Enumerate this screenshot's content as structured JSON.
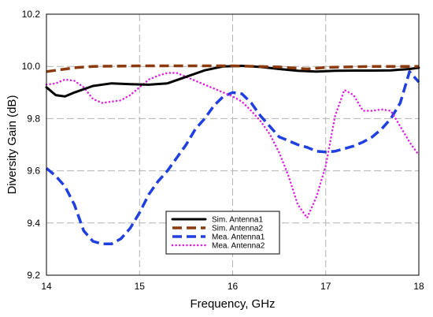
{
  "chart_data": {
    "type": "line",
    "xlabel": "Frequency, GHz",
    "ylabel": "Diversity Gain (dB)",
    "xlim": [
      14,
      18
    ],
    "ylim": [
      9.2,
      10.2
    ],
    "xticks": [
      "14",
      "15",
      "16",
      "17",
      "18"
    ],
    "yticks": [
      "9.2",
      "9.4",
      "9.6",
      "9.8",
      "10.0",
      "10.2"
    ],
    "grid": true,
    "legend_position": "bottom-center",
    "series": [
      {
        "name": "Sim. Antenna1",
        "color": "#000000",
        "style": "solid",
        "x": [
          14.0,
          14.1,
          14.2,
          14.3,
          14.5,
          14.7,
          14.9,
          15.1,
          15.3,
          15.5,
          15.7,
          15.9,
          16.1,
          16.3,
          16.5,
          16.7,
          16.9,
          17.1,
          17.3,
          17.5,
          17.7,
          17.9,
          18.0
        ],
        "y": [
          9.92,
          9.89,
          9.885,
          9.9,
          9.925,
          9.935,
          9.932,
          9.93,
          9.935,
          9.96,
          9.985,
          10.0,
          10.002,
          9.998,
          9.99,
          9.983,
          9.98,
          9.983,
          9.984,
          9.984,
          9.985,
          9.99,
          9.995
        ]
      },
      {
        "name": "Sim. Antenna2",
        "color": "#8B3A0E",
        "style": "dash",
        "x": [
          14.0,
          14.1,
          14.3,
          14.5,
          15.0,
          15.5,
          16.0,
          16.5,
          16.8,
          17.0,
          17.5,
          18.0
        ],
        "y": [
          9.98,
          9.985,
          9.995,
          10.0,
          10.002,
          10.002,
          10.002,
          9.998,
          9.99,
          9.996,
          10.0,
          10.0
        ]
      },
      {
        "name": "Mea. Antenna1",
        "color": "#1F3FE0",
        "style": "dash",
        "x": [
          14.0,
          14.1,
          14.2,
          14.3,
          14.4,
          14.5,
          14.6,
          14.7,
          14.8,
          14.9,
          15.0,
          15.1,
          15.2,
          15.3,
          15.4,
          15.5,
          15.6,
          15.7,
          15.8,
          15.9,
          16.0,
          16.1,
          16.2,
          16.3,
          16.4,
          16.5,
          16.6,
          16.7,
          16.8,
          16.9,
          17.0,
          17.1,
          17.2,
          17.3,
          17.4,
          17.5,
          17.6,
          17.7,
          17.8,
          17.9,
          18.0
        ],
        "y": [
          9.61,
          9.58,
          9.54,
          9.47,
          9.37,
          9.33,
          9.32,
          9.32,
          9.34,
          9.38,
          9.44,
          9.51,
          9.56,
          9.6,
          9.65,
          9.7,
          9.76,
          9.8,
          9.85,
          9.885,
          9.9,
          9.895,
          9.86,
          9.81,
          9.77,
          9.73,
          9.715,
          9.7,
          9.69,
          9.675,
          9.672,
          9.675,
          9.685,
          9.695,
          9.71,
          9.73,
          9.76,
          9.8,
          9.86,
          9.98,
          9.94
        ]
      },
      {
        "name": "Mea. Antenna2",
        "color": "#E020E0",
        "style": "dot",
        "x": [
          14.0,
          14.1,
          14.2,
          14.3,
          14.4,
          14.5,
          14.6,
          14.7,
          14.8,
          14.9,
          15.0,
          15.1,
          15.2,
          15.3,
          15.4,
          15.5,
          15.6,
          15.7,
          15.8,
          15.9,
          16.0,
          16.1,
          16.2,
          16.3,
          16.4,
          16.5,
          16.6,
          16.7,
          16.8,
          16.9,
          17.0,
          17.1,
          17.2,
          17.3,
          17.4,
          17.5,
          17.6,
          17.7,
          17.8,
          17.9,
          18.0
        ],
        "y": [
          9.93,
          9.935,
          9.95,
          9.945,
          9.92,
          9.875,
          9.86,
          9.865,
          9.87,
          9.89,
          9.92,
          9.95,
          9.965,
          9.975,
          9.975,
          9.96,
          9.945,
          9.93,
          9.915,
          9.9,
          9.885,
          9.865,
          9.83,
          9.79,
          9.74,
          9.67,
          9.58,
          9.47,
          9.42,
          9.5,
          9.62,
          9.81,
          9.91,
          9.89,
          9.83,
          9.83,
          9.835,
          9.83,
          9.77,
          9.71,
          9.66
        ]
      }
    ]
  }
}
